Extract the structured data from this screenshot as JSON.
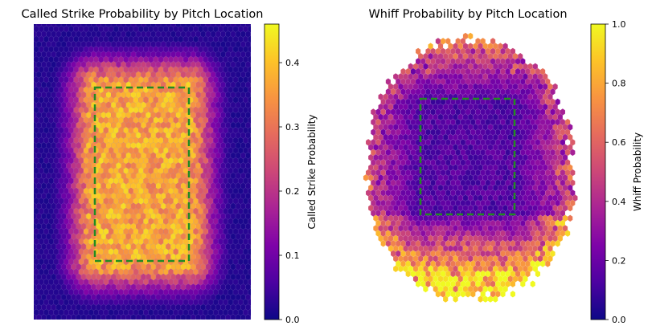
{
  "chart_data": [
    {
      "type": "heatmap",
      "title": "Called Strike Probability by Pitch Location",
      "colorbar_label": "Called Strike Probability",
      "colormap": "plasma",
      "value_range": [
        0.0,
        0.46
      ],
      "colorbar_ticks": [
        "0.0",
        "0.1",
        "0.2",
        "0.3",
        "0.4"
      ],
      "colorbar_tick_values": [
        0.0,
        0.1,
        0.2,
        0.3,
        0.4
      ],
      "axes_visible": false,
      "strike_zone_overlay": {
        "style": "dashed",
        "color": "#228B22"
      },
      "pattern": {
        "zone_core_value": 0.36,
        "edge_falloff": "smooth",
        "outside_value": 0.0
      }
    },
    {
      "type": "heatmap",
      "title": "Whiff Probability by Pitch Location",
      "colorbar_label": "Whiff Probability",
      "colormap": "plasma",
      "value_range": [
        0.0,
        1.0
      ],
      "colorbar_ticks": [
        "0.0",
        "0.2",
        "0.4",
        "0.6",
        "0.8",
        "1.0"
      ],
      "colorbar_tick_values": [
        0.0,
        0.2,
        0.4,
        0.6,
        0.8,
        1.0
      ],
      "axes_visible": false,
      "strike_zone_overlay": {
        "style": "dashed",
        "color": "#228B22"
      },
      "pattern": {
        "zone_center_value": 0.12,
        "below_zone_value": 0.9,
        "above_zone_value": 0.6,
        "gradient": "increases away from zone, highest low"
      }
    }
  ],
  "colors": {
    "zone_line": "#228B22",
    "background": "#1e0a8c"
  }
}
